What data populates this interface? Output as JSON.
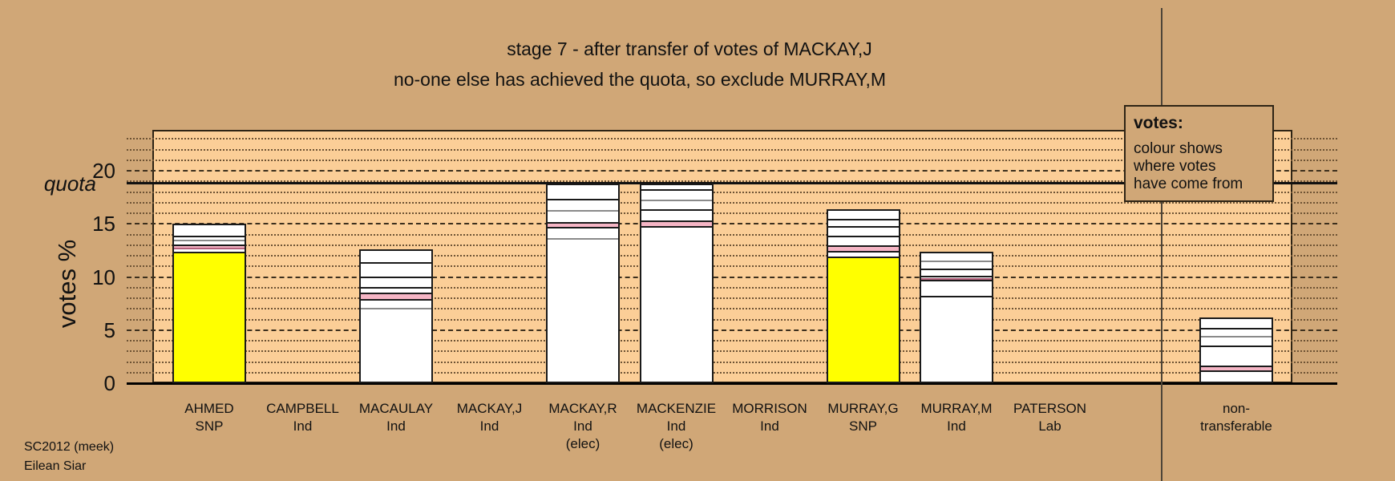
{
  "page": {
    "background": "#d0a777",
    "plot_background": "#fbce97",
    "legend": {
      "title": "votes:",
      "lines": [
        "colour shows",
        "where votes",
        "have come from"
      ]
    },
    "footer": {
      "line1": "SC2012 (meek)",
      "line2": "Eilean Siar"
    }
  },
  "chart_data": {
    "type": "bar",
    "title": "stage 7 - after transfer of votes of MACKAY,J",
    "subtitle": "no-one else has achieved the quota, so exclude MURRAY,M",
    "ylabel": "votes %",
    "xlabel": "",
    "ylim": [
      0,
      23.85
    ],
    "yticks": [
      0,
      5,
      10,
      15,
      20
    ],
    "grid": "dotted every 1%, dashed every 5%",
    "legend_position": "top-right",
    "quota": {
      "label": "quota",
      "value": 18.8
    },
    "colors": {
      "fills": {
        "yellow": "#ffff00",
        "white": "#ffffff",
        "pink": "#f5b5c5",
        "lightpink": "#eba6ba"
      },
      "seps": {
        "black": "#1a1a1a",
        "gray": "#8a8a8a",
        "darkpink": "#b5607d"
      }
    },
    "categories": [
      "AHMED",
      "CAMPBELL",
      "MACAULAY",
      "MACKAY,J",
      "MACKAY,R",
      "MACKENZIE",
      "MORRISON",
      "MURRAY,G",
      "MURRAY,M",
      "PATERSON",
      "non-transferable"
    ],
    "bars": [
      {
        "id": "ahmed",
        "label_lines": [
          "AHMED",
          "SNP"
        ],
        "total": 15.0,
        "segments": [
          {
            "from": 0,
            "to": 12.5,
            "fill": "yellow",
            "sep": "black"
          },
          {
            "from": 12.5,
            "to": 12.85,
            "fill": "white",
            "sep": "darkpink"
          },
          {
            "from": 12.85,
            "to": 13.2,
            "fill": "pink",
            "sep": "black"
          },
          {
            "from": 13.2,
            "to": 13.65,
            "fill": "white",
            "sep": "gray"
          },
          {
            "from": 13.65,
            "to": 14.0,
            "fill": "white",
            "sep": "black"
          },
          {
            "from": 14.0,
            "to": 15.0,
            "fill": "white",
            "sep": "none"
          }
        ]
      },
      {
        "id": "campbell",
        "label_lines": [
          "CAMPBELL",
          "Ind"
        ],
        "total": 0,
        "segments": []
      },
      {
        "id": "macaulay",
        "label_lines": [
          "MACAULAY",
          "Ind"
        ],
        "total": 12.6,
        "segments": [
          {
            "from": 0,
            "to": 7.15,
            "fill": "white",
            "sep": "gray"
          },
          {
            "from": 7.15,
            "to": 7.95,
            "fill": "white",
            "sep": "black"
          },
          {
            "from": 7.95,
            "to": 8.55,
            "fill": "pink",
            "sep": "black"
          },
          {
            "from": 8.55,
            "to": 9.1,
            "fill": "white",
            "sep": "black"
          },
          {
            "from": 9.1,
            "to": 10.1,
            "fill": "white",
            "sep": "black"
          },
          {
            "from": 10.1,
            "to": 11.5,
            "fill": "white",
            "sep": "black"
          },
          {
            "from": 11.5,
            "to": 12.6,
            "fill": "white",
            "sep": "none"
          }
        ]
      },
      {
        "id": "mackay-j",
        "label_lines": [
          "MACKAY,J",
          "Ind"
        ],
        "total": 0,
        "segments": []
      },
      {
        "id": "mackay-r",
        "label_lines": [
          "MACKAY,R",
          "Ind",
          "(elec)"
        ],
        "total": 18.8,
        "segments": [
          {
            "from": 0,
            "to": 13.7,
            "fill": "white",
            "sep": "gray"
          },
          {
            "from": 13.7,
            "to": 14.8,
            "fill": "white",
            "sep": "black"
          },
          {
            "from": 14.8,
            "to": 15.3,
            "fill": "pink",
            "sep": "black"
          },
          {
            "from": 15.3,
            "to": 16.4,
            "fill": "white",
            "sep": "gray"
          },
          {
            "from": 16.4,
            "to": 17.5,
            "fill": "white",
            "sep": "black"
          },
          {
            "from": 17.5,
            "to": 18.8,
            "fill": "white",
            "sep": "none"
          }
        ]
      },
      {
        "id": "mackenzie",
        "label_lines": [
          "MACKENZIE",
          "Ind",
          "(elec)"
        ],
        "total": 18.8,
        "segments": [
          {
            "from": 0,
            "to": 14.9,
            "fill": "white",
            "sep": "black"
          },
          {
            "from": 14.9,
            "to": 15.4,
            "fill": "pink",
            "sep": "black"
          },
          {
            "from": 15.4,
            "to": 16.5,
            "fill": "white",
            "sep": "black"
          },
          {
            "from": 16.5,
            "to": 17.4,
            "fill": "white",
            "sep": "gray"
          },
          {
            "from": 17.4,
            "to": 18.4,
            "fill": "white",
            "sep": "black"
          },
          {
            "from": 18.4,
            "to": 18.8,
            "fill": "white",
            "sep": "none"
          }
        ]
      },
      {
        "id": "morrison",
        "label_lines": [
          "MORRISON",
          "Ind"
        ],
        "total": 0,
        "segments": []
      },
      {
        "id": "murray-g",
        "label_lines": [
          "MURRAY,G",
          "SNP"
        ],
        "total": 16.4,
        "segments": [
          {
            "from": 0,
            "to": 12.0,
            "fill": "yellow",
            "sep": "black"
          },
          {
            "from": 12.0,
            "to": 12.5,
            "fill": "white",
            "sep": "black"
          },
          {
            "from": 12.5,
            "to": 13.1,
            "fill": "pink",
            "sep": "black"
          },
          {
            "from": 13.1,
            "to": 14.0,
            "fill": "white",
            "sep": "black"
          },
          {
            "from": 14.0,
            "to": 14.9,
            "fill": "white",
            "sep": "black"
          },
          {
            "from": 14.9,
            "to": 15.6,
            "fill": "white",
            "sep": "black"
          },
          {
            "from": 15.6,
            "to": 16.4,
            "fill": "white",
            "sep": "none"
          }
        ]
      },
      {
        "id": "murray-m",
        "label_lines": [
          "MURRAY,M",
          "Ind"
        ],
        "total": 12.4,
        "segments": [
          {
            "from": 0,
            "to": 8.3,
            "fill": "white",
            "sep": "black"
          },
          {
            "from": 8.3,
            "to": 9.8,
            "fill": "white",
            "sep": "black"
          },
          {
            "from": 9.8,
            "to": 9.95,
            "fill": "lightpink",
            "sep": "darkpink"
          },
          {
            "from": 9.95,
            "to": 10.2,
            "fill": "white",
            "sep": "black"
          },
          {
            "from": 10.2,
            "to": 10.9,
            "fill": "white",
            "sep": "black"
          },
          {
            "from": 10.9,
            "to": 11.65,
            "fill": "white",
            "sep": "gray"
          },
          {
            "from": 11.65,
            "to": 12.4,
            "fill": "white",
            "sep": "none"
          }
        ]
      },
      {
        "id": "paterson",
        "label_lines": [
          "PATERSON",
          "Lab"
        ],
        "total": 0,
        "segments": []
      },
      {
        "id": "non-transferable",
        "label_lines": [
          "non-",
          "transferable"
        ],
        "total": 6.2,
        "segments": [
          {
            "from": 0,
            "to": 1.1,
            "fill": "white",
            "sep": "black"
          },
          {
            "from": 1.1,
            "to": 1.6,
            "fill": "pink",
            "sep": "black"
          },
          {
            "from": 1.6,
            "to": 3.6,
            "fill": "white",
            "sep": "black"
          },
          {
            "from": 3.6,
            "to": 4.5,
            "fill": "white",
            "sep": "gray"
          },
          {
            "from": 4.5,
            "to": 5.3,
            "fill": "white",
            "sep": "black"
          },
          {
            "from": 5.3,
            "to": 6.2,
            "fill": "white",
            "sep": "none"
          }
        ]
      }
    ]
  }
}
